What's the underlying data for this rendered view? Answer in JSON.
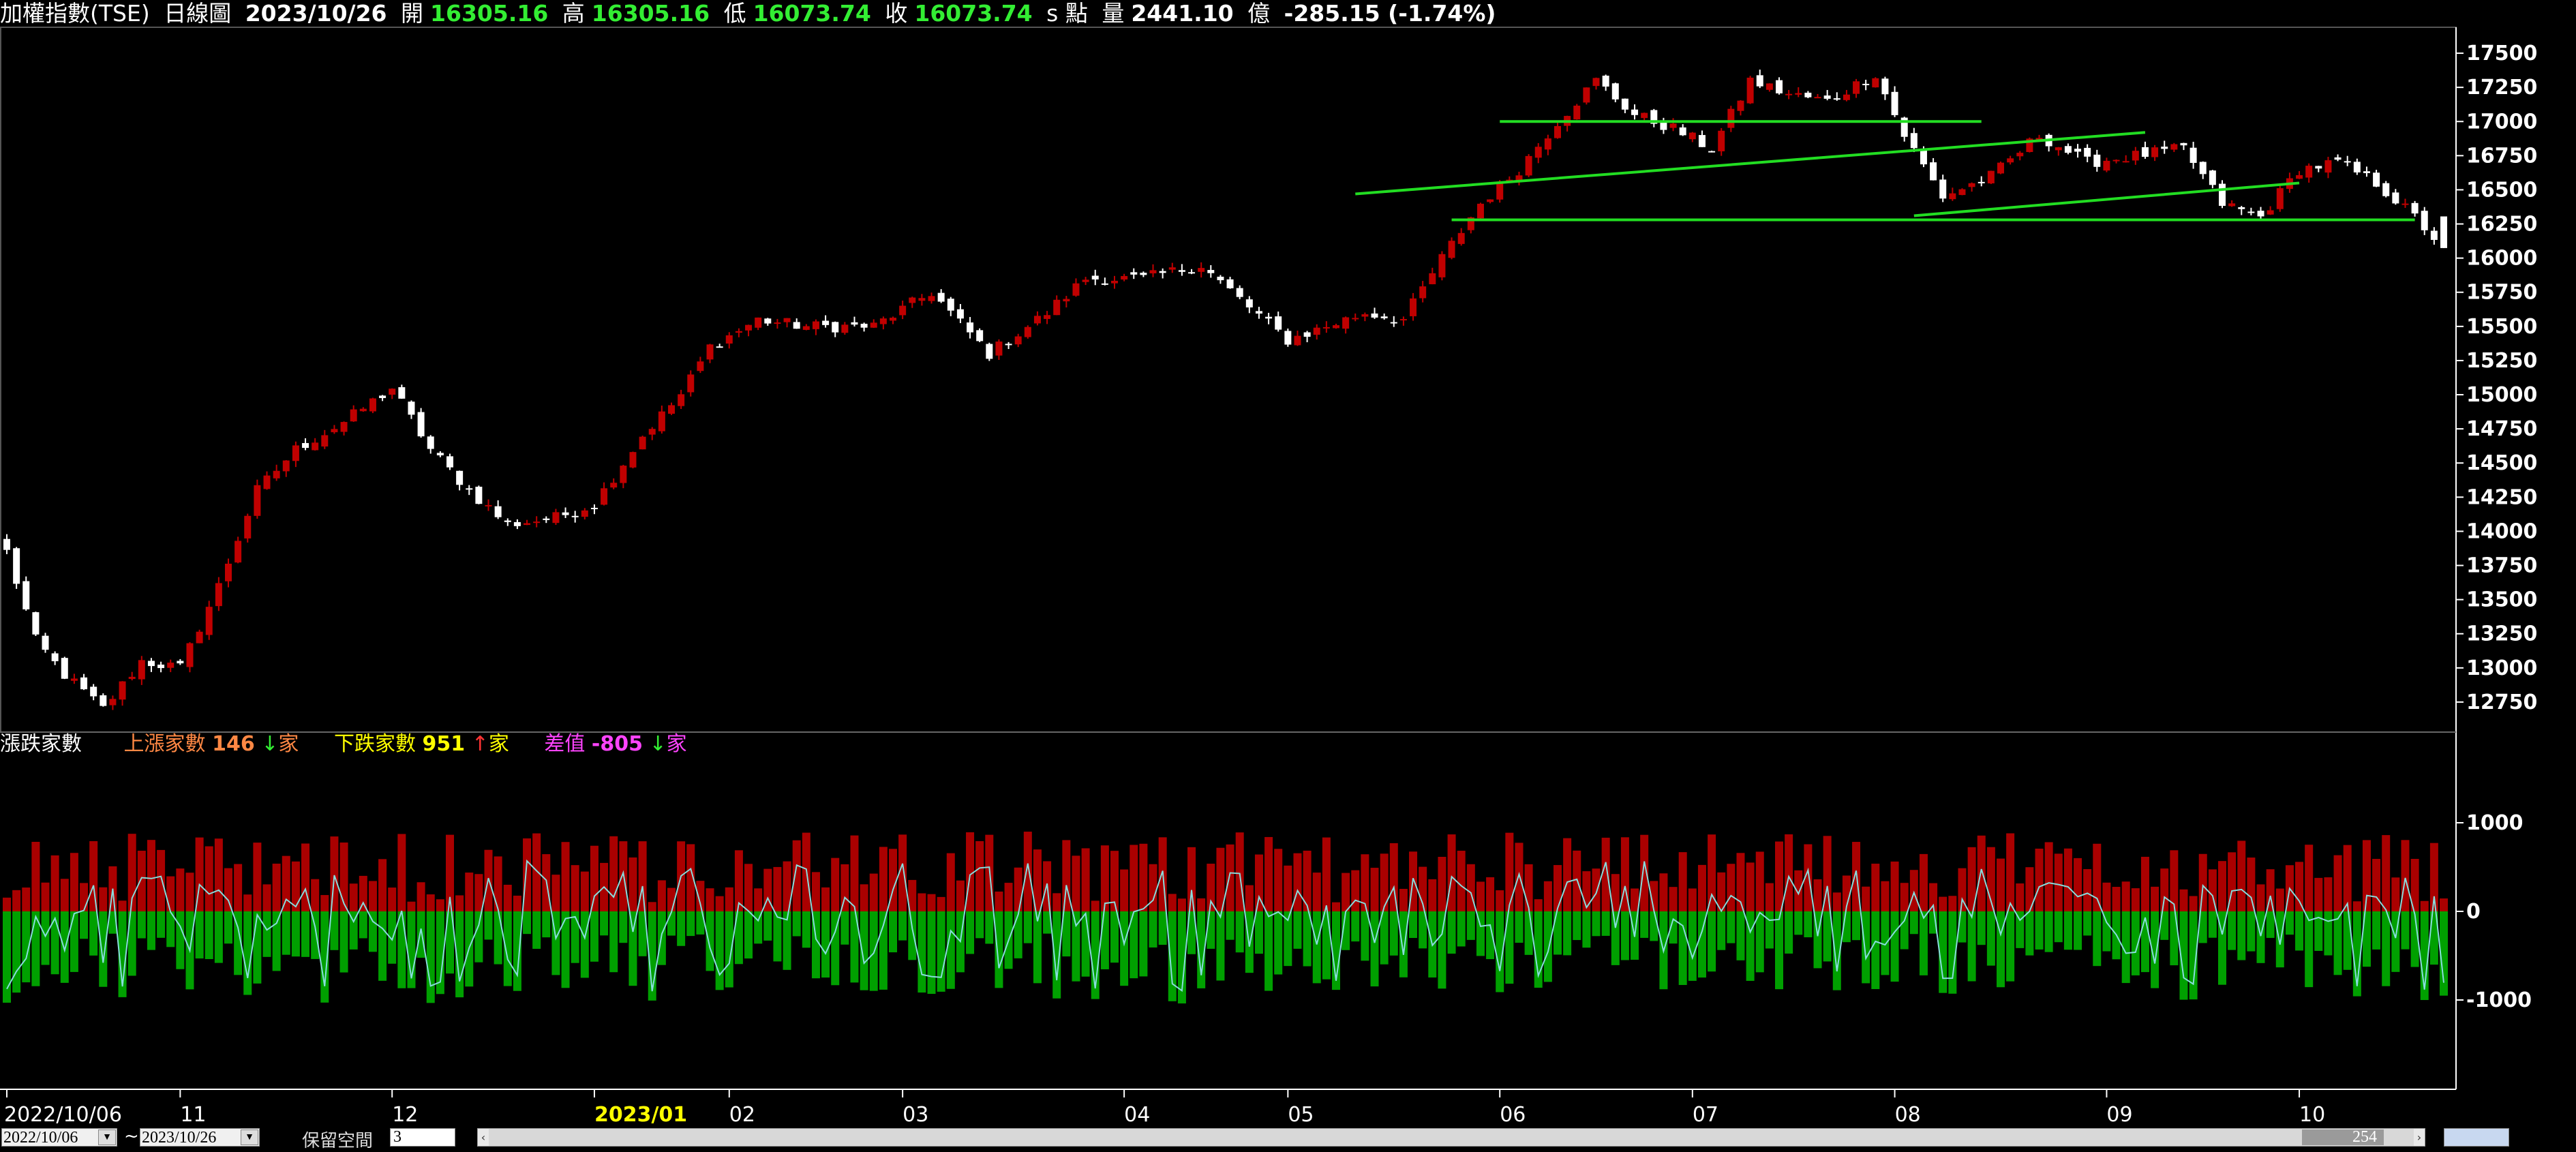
{
  "header": {
    "title": "加權指數(TSE)",
    "period": "日線圖",
    "date": "2023/10/26",
    "open_label": "開",
    "open": "16305.16",
    "high_label": "高",
    "high": "16305.16",
    "low_label": "低",
    "low": "16073.74",
    "close_label": "收",
    "close": "16073.74",
    "unit": "s 點",
    "volume_label": "量",
    "volume": "2441.10",
    "volume_unit": "億",
    "change": "-285.15 (-1.74%)"
  },
  "subheader": {
    "title": "漲跌家數",
    "up_label": "上漲家數",
    "up_value": "146",
    "up_arrow": "↓",
    "up_unit": "家",
    "down_label": "下跌家數",
    "down_value": "951",
    "down_arrow": "↑",
    "down_unit": "家",
    "diff_label": "差值",
    "diff_value": "-805",
    "diff_arrow": "↓",
    "diff_unit": "家"
  },
  "colors": {
    "up_candle": "#c00000",
    "down_candle": "#ffffff",
    "trendline": "#22dd22",
    "up_bar": "#aa0000",
    "down_bar": "#00a000",
    "diff_line": "#88dddd",
    "axis": "#ffffff",
    "month_text": "#ffffff",
    "year_text": "#ffff00"
  },
  "footer": {
    "start_date": "2022/10/06",
    "tilde": "~",
    "end_date": "2023/10/26",
    "keep_label": "保留空間",
    "keep_value": "3",
    "scroll_count": "254"
  },
  "chart_data": [
    {
      "type": "candlestick",
      "title": "加權指數(TSE) 日線圖",
      "y_ticks": [
        12750,
        13000,
        13250,
        13500,
        13750,
        14000,
        14250,
        14500,
        14750,
        15000,
        15250,
        15500,
        15750,
        16000,
        16250,
        16500,
        16750,
        17000,
        17250,
        17500
      ],
      "ylim": [
        12550,
        17650
      ],
      "x_tick_labels": [
        {
          "label": "2022/10/06",
          "day": 0
        },
        {
          "label": "11",
          "day": 18
        },
        {
          "label": "12",
          "day": 40
        },
        {
          "label": "2023/01",
          "day": 61
        },
        {
          "label": "02",
          "day": 75
        },
        {
          "label": "03",
          "day": 93
        },
        {
          "label": "04",
          "day": 116
        },
        {
          "label": "05",
          "day": 133
        },
        {
          "label": "06",
          "day": 155
        },
        {
          "label": "07",
          "day": 175
        },
        {
          "label": "08",
          "day": 196
        },
        {
          "label": "09",
          "day": 218
        },
        {
          "label": "10",
          "day": 238
        }
      ],
      "anchors": [
        [
          0,
          13850
        ],
        [
          3,
          13200
        ],
        [
          6,
          12950
        ],
        [
          10,
          12700
        ],
        [
          14,
          13050
        ],
        [
          18,
          13000
        ],
        [
          22,
          13600
        ],
        [
          26,
          14300
        ],
        [
          30,
          14600
        ],
        [
          35,
          14800
        ],
        [
          40,
          15050
        ],
        [
          44,
          14600
        ],
        [
          48,
          14300
        ],
        [
          52,
          14050
        ],
        [
          57,
          14100
        ],
        [
          61,
          14200
        ],
        [
          66,
          14700
        ],
        [
          70,
          15000
        ],
        [
          73,
          15350
        ],
        [
          78,
          15550
        ],
        [
          83,
          15500
        ],
        [
          90,
          15500
        ],
        [
          96,
          15750
        ],
        [
          102,
          15300
        ],
        [
          108,
          15600
        ],
        [
          112,
          15850
        ],
        [
          118,
          15850
        ],
        [
          124,
          15950
        ],
        [
          128,
          15700
        ],
        [
          133,
          15400
        ],
        [
          137,
          15500
        ],
        [
          141,
          15600
        ],
        [
          145,
          15550
        ],
        [
          149,
          16000
        ],
        [
          153,
          16400
        ],
        [
          157,
          16650
        ],
        [
          161,
          17000
        ],
        [
          165,
          17300
        ],
        [
          169,
          17050
        ],
        [
          173,
          16950
        ],
        [
          177,
          16800
        ],
        [
          181,
          17300
        ],
        [
          185,
          17200
        ],
        [
          189,
          17150
        ],
        [
          194,
          17350
        ],
        [
          197,
          16900
        ],
        [
          201,
          16450
        ],
        [
          206,
          16600
        ],
        [
          211,
          16900
        ],
        [
          216,
          16700
        ],
        [
          221,
          16750
        ],
        [
          226,
          16800
        ],
        [
          230,
          16400
        ],
        [
          234,
          16300
        ],
        [
          238,
          16650
        ],
        [
          242,
          16700
        ],
        [
          246,
          16550
        ],
        [
          250,
          16300
        ],
        [
          253,
          16073.74
        ]
      ],
      "count": 254,
      "last_bar": {
        "open": 16305.16,
        "high": 16305.16,
        "low": 16073.74,
        "close": 16073.74
      },
      "trendlines": [
        {
          "d1": 150,
          "v1": 16280,
          "d2": 250,
          "v2": 16280
        },
        {
          "d1": 155,
          "v1": 17000,
          "d2": 205,
          "v2": 17000
        },
        {
          "d1": 140,
          "v1": 16470,
          "d2": 222,
          "v2": 16920
        },
        {
          "d1": 198,
          "v1": 16310,
          "d2": 238,
          "v2": 16550
        }
      ]
    },
    {
      "type": "bar",
      "title": "漲跌家數",
      "y_ticks": [
        -1000,
        0,
        1000
      ],
      "series": [
        {
          "name": "上漲家數",
          "values_desc": "positive red bars per day"
        },
        {
          "name": "下跌家數",
          "values_desc": "negative green bars per day"
        },
        {
          "name": "差值",
          "values_desc": "cyan line"
        }
      ],
      "last_values": {
        "up": 146,
        "down": 951,
        "diff": -805
      }
    }
  ]
}
